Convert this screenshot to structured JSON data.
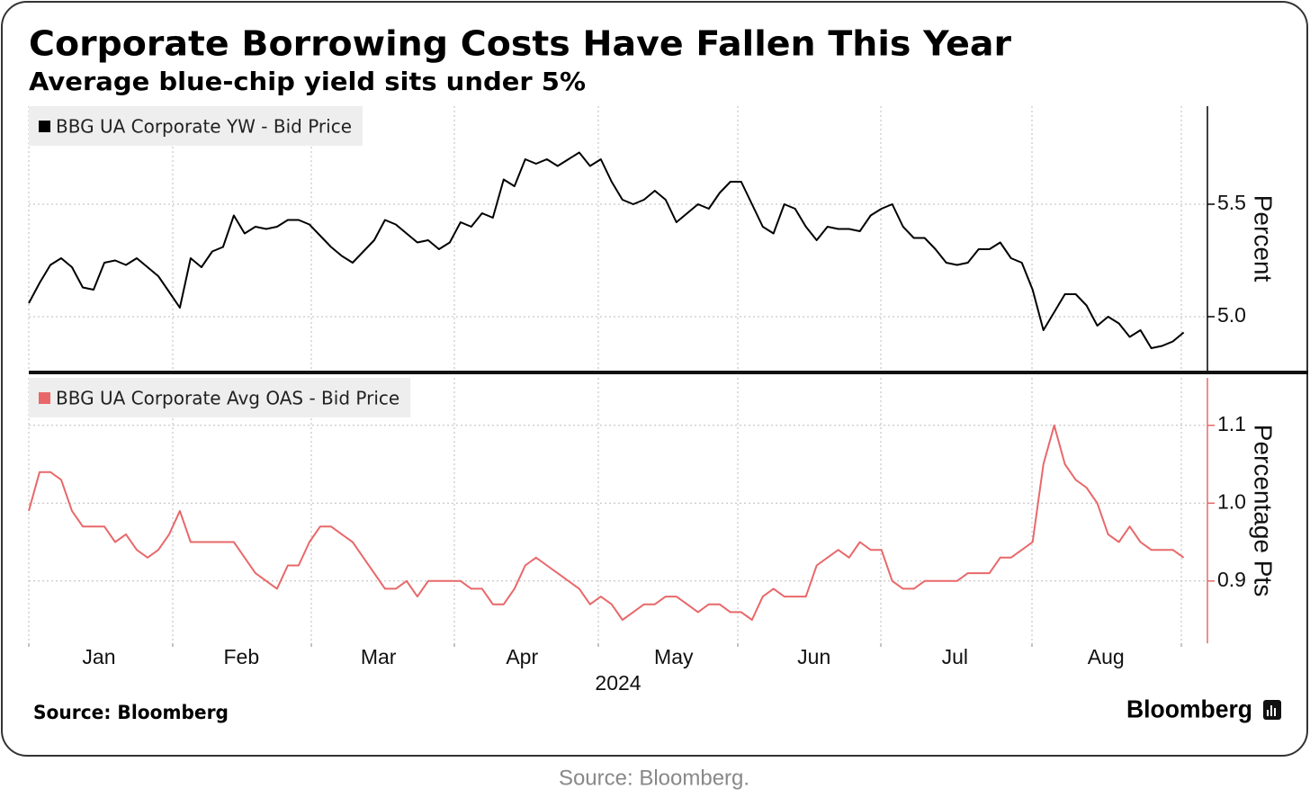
{
  "title": "Corporate Borrowing Costs Have Fallen This Year",
  "subtitle": "Average blue-chip yield sits under 5%",
  "source": "Source: Bloomberg",
  "logo": "Bloomberg",
  "caption": "Source:  Bloomberg.",
  "chart_data": [
    {
      "type": "line",
      "ylabel": "Percent",
      "xlim": [
        0,
        109.2
      ],
      "ylim": [
        4.76,
        5.936
      ],
      "yticks": [
        {
          "value": 5,
          "label": "5.0"
        },
        5.5
      ],
      "series": [
        {
          "name": "BBG UA Corporate YW - Bid Price",
          "color": "#000000",
          "values": [
            5.06,
            5.15,
            5.23,
            5.26,
            5.22,
            5.13,
            5.12,
            5.24,
            5.25,
            5.23,
            5.26,
            5.22,
            5.18,
            5.11,
            5.04,
            5.26,
            5.22,
            5.29,
            5.31,
            5.45,
            5.37,
            5.4,
            5.39,
            5.4,
            5.43,
            5.43,
            5.41,
            5.36,
            5.31,
            5.27,
            5.24,
            5.29,
            5.34,
            5.43,
            5.41,
            5.37,
            5.33,
            5.34,
            5.3,
            5.33,
            5.42,
            5.4,
            5.46,
            5.44,
            5.61,
            5.58,
            5.7,
            5.68,
            5.7,
            5.67,
            5.7,
            5.73,
            5.67,
            5.7,
            5.6,
            5.52,
            5.5,
            5.52,
            5.56,
            5.52,
            5.42,
            5.46,
            5.5,
            5.48,
            5.55,
            5.6,
            5.6,
            5.5,
            5.4,
            5.37,
            5.5,
            5.48,
            5.4,
            5.34,
            5.4,
            5.39,
            5.39,
            5.38,
            5.45,
            5.48,
            5.5,
            5.4,
            5.35,
            5.35,
            5.3,
            5.24,
            5.23,
            5.24,
            5.3,
            5.3,
            5.33,
            5.26,
            5.24,
            5.12,
            4.94,
            5.02,
            5.1,
            5.1,
            5.05,
            4.96,
            5.0,
            4.97,
            4.91,
            4.94,
            4.86,
            4.87,
            4.89,
            4.93
          ]
        }
      ]
    },
    {
      "type": "line",
      "ylabel": "Percentage Pts",
      "xlabel": "2024",
      "xlim": [
        0,
        109.2
      ],
      "xticks": [
        {
          "value": 6.5,
          "label": "Jan"
        },
        {
          "value": 19.7,
          "label": "Feb"
        },
        {
          "value": 32.4,
          "label": "Mar"
        },
        {
          "value": 45.7,
          "label": "Apr"
        },
        {
          "value": 59.75,
          "label": "May"
        },
        {
          "value": 72.75,
          "label": "Jun"
        },
        {
          "value": 85.8,
          "label": "Jul"
        },
        {
          "value": 99.8,
          "label": "Aug"
        }
      ],
      "ylim": [
        0.82,
        1.161
      ],
      "yticks": [
        0.9,
        {
          "value": 1,
          "label": "1.0"
        },
        1.1
      ],
      "series": [
        {
          "name": "BBG UA Corporate Avg OAS - Bid Price",
          "color": "#e8686a",
          "values": [
            0.99,
            1.04,
            1.04,
            1.03,
            0.99,
            0.97,
            0.97,
            0.97,
            0.95,
            0.96,
            0.94,
            0.93,
            0.94,
            0.96,
            0.99,
            0.95,
            0.95,
            0.95,
            0.95,
            0.95,
            0.93,
            0.91,
            0.9,
            0.89,
            0.92,
            0.92,
            0.95,
            0.97,
            0.97,
            0.96,
            0.95,
            0.93,
            0.91,
            0.89,
            0.89,
            0.9,
            0.88,
            0.9,
            0.9,
            0.9,
            0.9,
            0.89,
            0.89,
            0.87,
            0.87,
            0.89,
            0.92,
            0.93,
            0.92,
            0.91,
            0.9,
            0.89,
            0.87,
            0.88,
            0.87,
            0.85,
            0.86,
            0.87,
            0.87,
            0.88,
            0.88,
            0.87,
            0.86,
            0.87,
            0.87,
            0.86,
            0.86,
            0.85,
            0.88,
            0.89,
            0.88,
            0.88,
            0.88,
            0.92,
            0.93,
            0.94,
            0.93,
            0.95,
            0.94,
            0.94,
            0.9,
            0.89,
            0.89,
            0.9,
            0.9,
            0.9,
            0.9,
            0.91,
            0.91,
            0.91,
            0.93,
            0.93,
            0.94,
            0.95,
            1.05,
            1.1,
            1.05,
            1.03,
            1.02,
            1.0,
            0.96,
            0.95,
            0.97,
            0.95,
            0.94,
            0.94,
            0.94,
            0.93
          ]
        }
      ]
    }
  ]
}
